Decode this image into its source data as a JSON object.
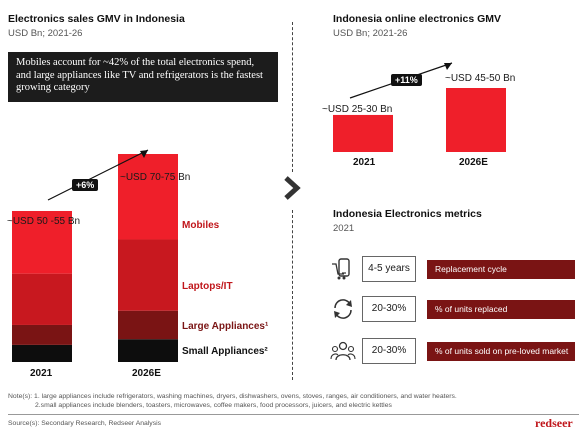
{
  "left": {
    "title": "Electronics sales GMV in Indonesia",
    "subtitle": "USD Bn; 2021-26",
    "callout": "Mobiles account for ~42% of the total electronics spend, and large appliances like TV and refrigerators is the fastest growing category",
    "growth": "+6%",
    "total_2021": "~USD 50 -55 Bn",
    "total_2026": "~USD 70-75 Bn"
  },
  "right": {
    "title": "Indonesia online electronics GMV",
    "subtitle": "USD Bn; 2021-26",
    "growth": "+11%",
    "total_2021": "~USD 25-30 Bn",
    "total_2026": "~USD 45-50 Bn"
  },
  "metrics": {
    "title": "Indonesia Electronics metrics",
    "subtitle": "2021",
    "rows": [
      {
        "icon": "phone-cart-icon",
        "value": "4-5 years",
        "label": "Replacement cycle"
      },
      {
        "icon": "replace-cycle-icon",
        "value": "20-30%",
        "label": "% of units replaced"
      },
      {
        "icon": "people-icon",
        "value": "20-30%",
        "label": "% of units sold on pre-loved market"
      }
    ]
  },
  "notes": {
    "line1": "Note(s): 1. large appliances include refrigerators, washing machines, dryers, dishwashers, ovens, stoves, ranges, air conditioners, and water heaters.",
    "line2": "2.small appliances include blenders, toasters, microwaves, coffee makers, food processors, juicers, and electric kettles",
    "source": "Source(s): Secondary Research, Redseer Analysis"
  },
  "brand": "redseer",
  "colors": {
    "mobiles": "#ef1f2a",
    "laptops": "#c8181f",
    "large_appliances": "#7a1414",
    "small_appliances": "#0d0d0d",
    "online": "#ef1f2a",
    "accent_text": "#c0161b"
  },
  "chart_data": [
    {
      "type": "bar",
      "stacked": true,
      "categories": [
        "2021",
        "2026E"
      ],
      "series": [
        {
          "name": "Mobiles",
          "values": [
            22,
            30
          ]
        },
        {
          "name": "Laptops/IT",
          "values": [
            18,
            25
          ]
        },
        {
          "name": "Large Appliances¹",
          "values": [
            7,
            10
          ]
        },
        {
          "name": "Small Appliances²",
          "values": [
            6,
            8
          ]
        }
      ],
      "value_labels": [
        "~USD 50 -55 Bn",
        "~USD 70-75 Bn"
      ],
      "annotation": "+6%",
      "ylim": [
        0,
        73
      ]
    },
    {
      "type": "bar",
      "categories": [
        "2021",
        "2026E"
      ],
      "values": [
        27.5,
        47.5
      ],
      "value_labels": [
        "~USD 25-30 Bn",
        "~USD 45-50 Bn"
      ],
      "annotation": "+11%",
      "ylim": [
        0,
        47.5
      ]
    }
  ]
}
